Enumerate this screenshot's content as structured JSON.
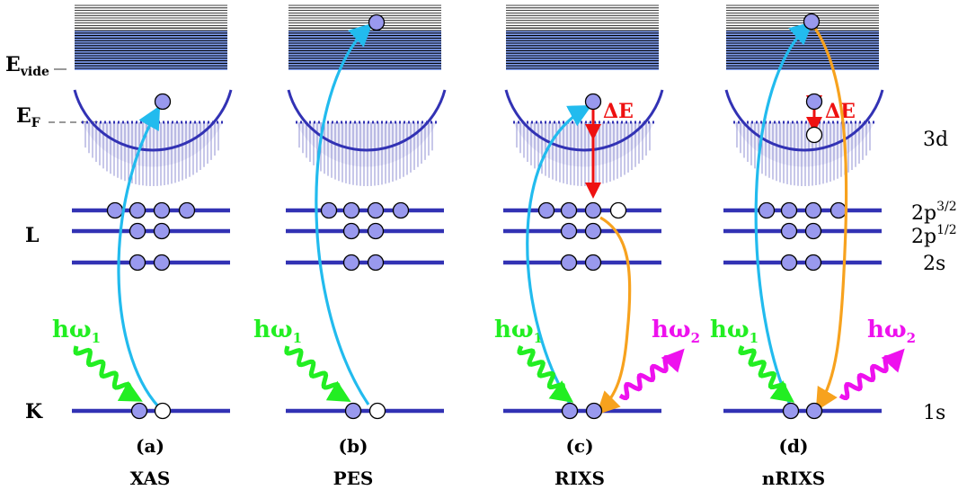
{
  "left_labels": {
    "e_vide": {
      "main": "E",
      "sub": "vide"
    },
    "e_f": {
      "main": "E",
      "sub": "F"
    },
    "l_shell": "L",
    "k_shell": "K"
  },
  "right_labels": {
    "d3": "3d",
    "p32": {
      "main": "2p",
      "sup": "3/2"
    },
    "p12": {
      "main": "2p",
      "sup": "1/2"
    },
    "s2": "2s",
    "s1": "1s"
  },
  "panels": [
    {
      "id": "a",
      "letter": "(a)",
      "technique": "XAS",
      "photon_in": {
        "main": "hω",
        "sub": "1"
      }
    },
    {
      "id": "b",
      "letter": "(b)",
      "technique": "PES",
      "photon_in": {
        "main": "hω",
        "sub": "1"
      }
    },
    {
      "id": "c",
      "letter": "(c)",
      "technique": "RIXS",
      "photon_in": {
        "main": "hω",
        "sub": "1"
      },
      "photon_out": {
        "main": "hω",
        "sub": "2"
      },
      "delta": "ΔE"
    },
    {
      "id": "d",
      "letter": "(d)",
      "technique": "nRIXS",
      "photon_in": {
        "main": "hω",
        "sub": "1"
      },
      "photon_out": {
        "main": "hω",
        "sub": "2"
      },
      "delta": "ΔE"
    }
  ],
  "colors": {
    "level": "#3232b4",
    "electron": "#9999ee",
    "continuum": "#7f9df0",
    "absorb_arrow": "#22bbee",
    "emit_arrow": "#f7a21e",
    "photon_in": "#22ee22",
    "photon_out": "#ee11ee",
    "delta": "#ee1111"
  }
}
